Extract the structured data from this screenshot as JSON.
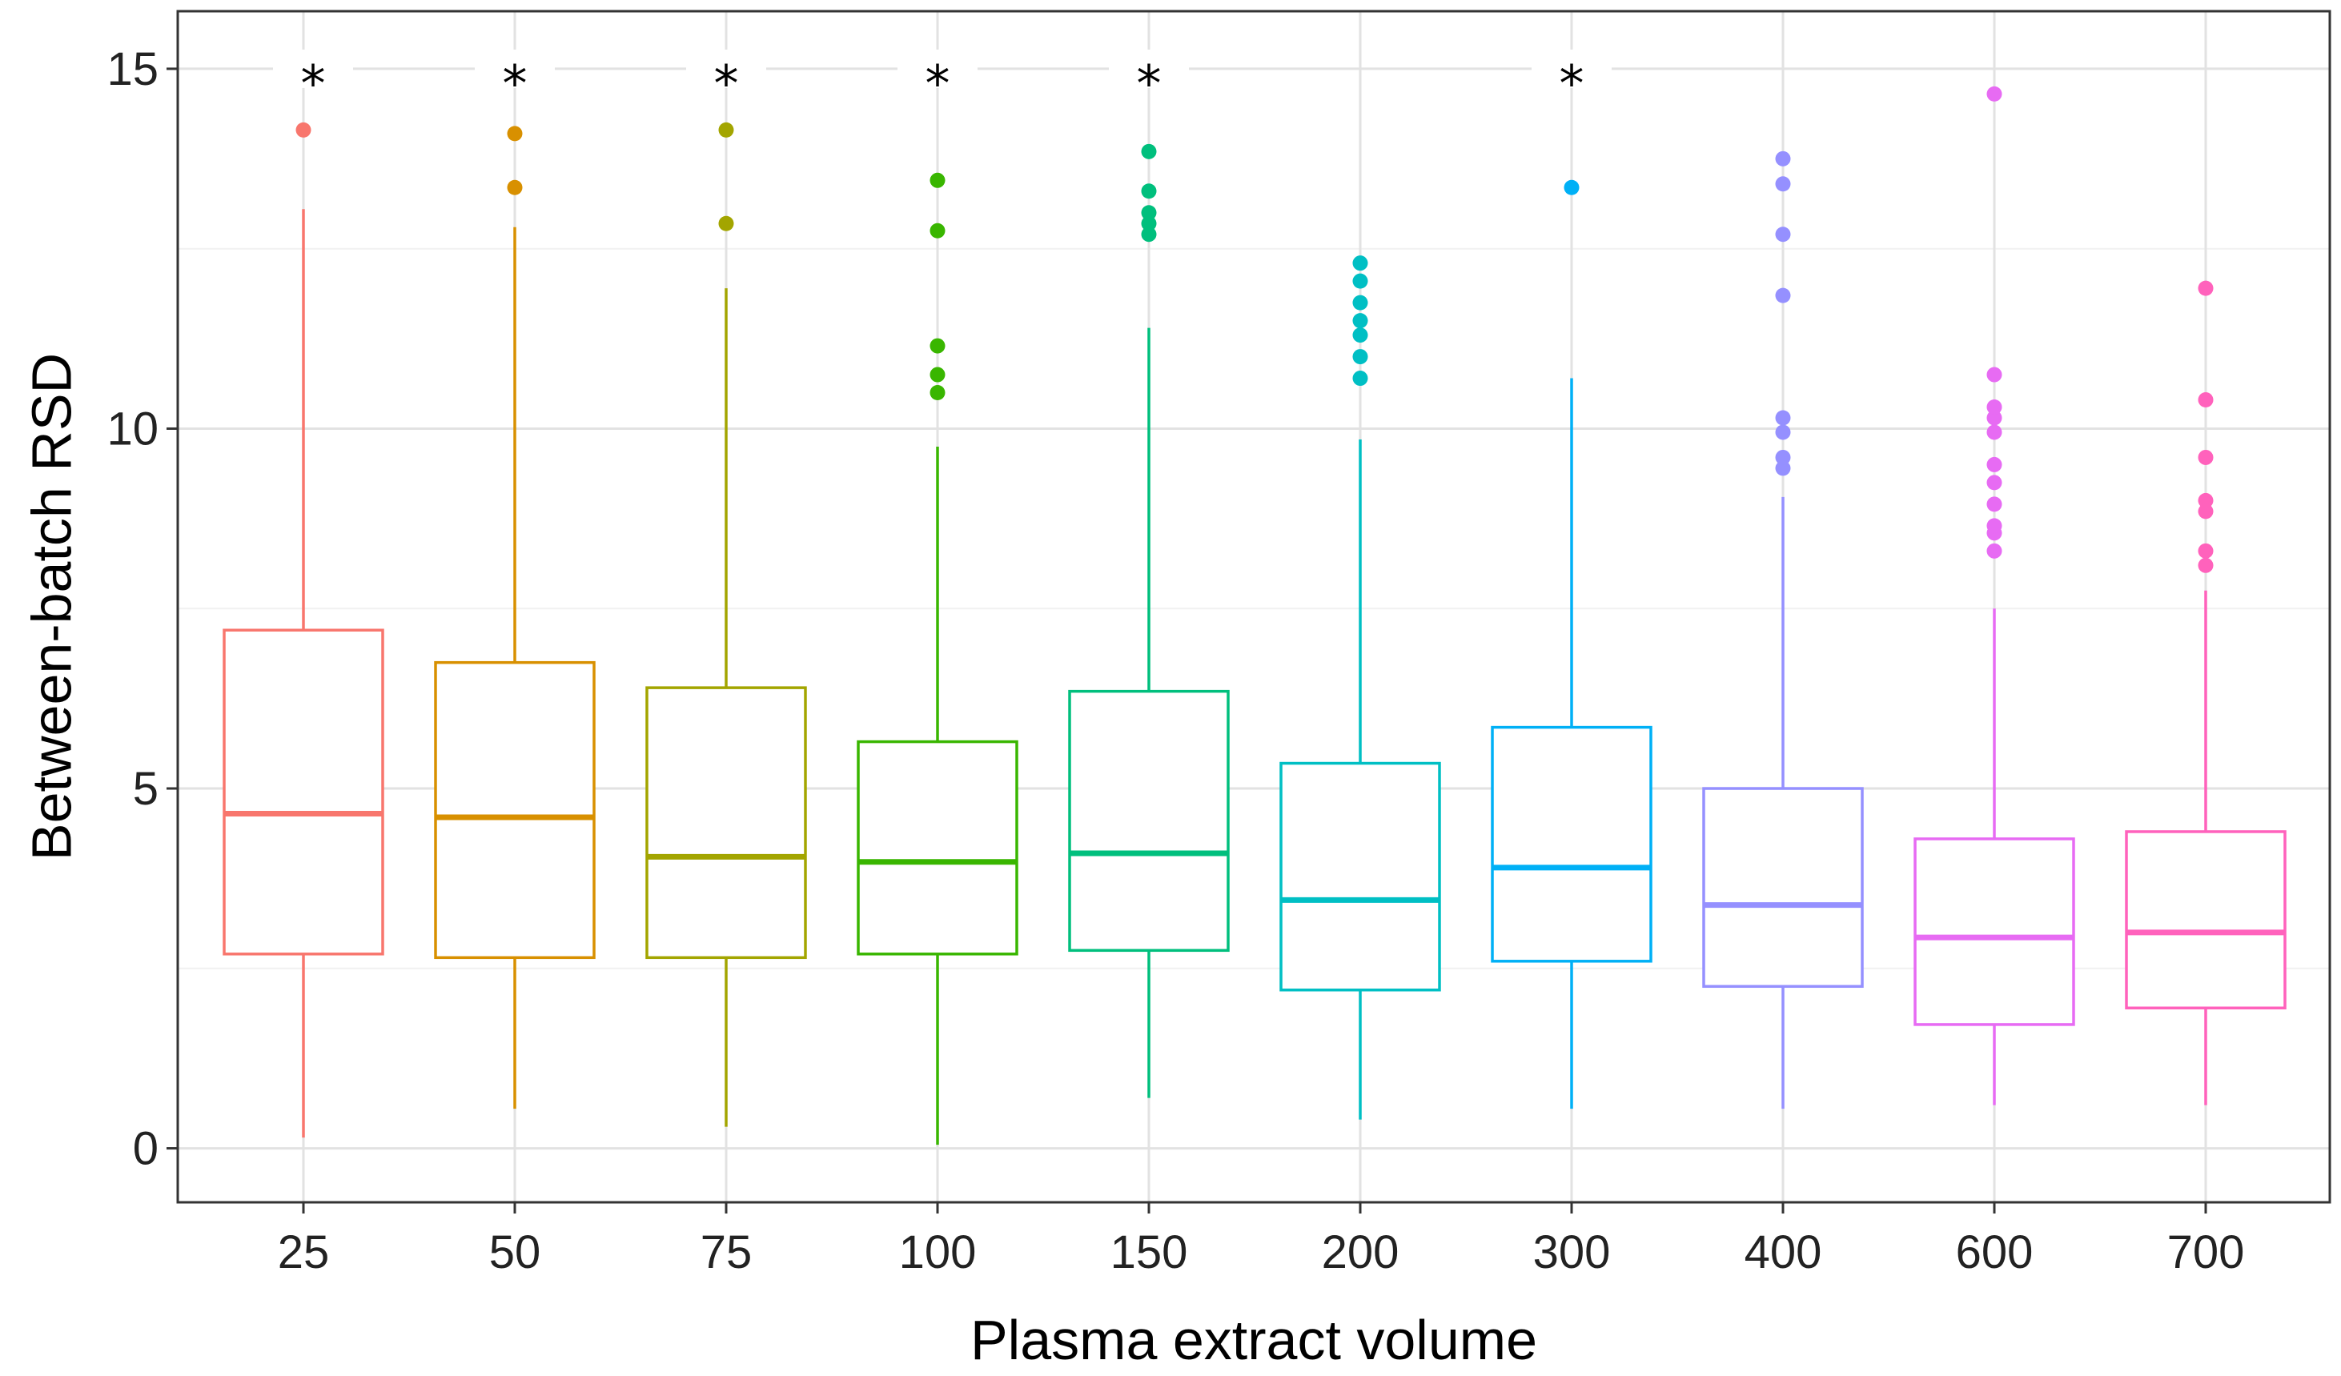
{
  "chart_data": {
    "type": "box",
    "title": "",
    "xlabel": "Plasma extract volume",
    "ylabel": "Between-batch RSD",
    "ylim": [
      -0.75,
      15.8
    ],
    "yticks": [
      0,
      5,
      10,
      15
    ],
    "ytick_labels": [
      "0",
      "5",
      "10",
      "15"
    ],
    "grid": true,
    "significance_marker": "*",
    "categories": [
      "25",
      "50",
      "75",
      "100",
      "150",
      "200",
      "300",
      "400",
      "600",
      "700"
    ],
    "colors": [
      "#F8766D",
      "#D89000",
      "#A3A500",
      "#39B600",
      "#00BF7D",
      "#00BFC4",
      "#00B0F6",
      "#9590FF",
      "#E76BF3",
      "#FF62BC"
    ],
    "boxes": [
      {
        "label": "25",
        "min": 0.15,
        "q1": 2.7,
        "median": 4.65,
        "q3": 7.2,
        "max": 13.05,
        "outliers": [
          14.15
        ],
        "significant": true
      },
      {
        "label": "50",
        "min": 0.55,
        "q1": 2.65,
        "median": 4.6,
        "q3": 6.75,
        "max": 12.8,
        "outliers": [
          13.35,
          14.1
        ],
        "significant": true
      },
      {
        "label": "75",
        "min": 0.3,
        "q1": 2.65,
        "median": 4.05,
        "q3": 6.4,
        "max": 11.95,
        "outliers": [
          12.85,
          14.15
        ],
        "significant": true
      },
      {
        "label": "100",
        "min": 0.05,
        "q1": 2.7,
        "median": 3.98,
        "q3": 5.65,
        "max": 9.75,
        "outliers": [
          10.5,
          10.75,
          11.15,
          12.75,
          13.45
        ],
        "significant": true
      },
      {
        "label": "150",
        "min": 0.7,
        "q1": 2.75,
        "median": 4.1,
        "q3": 6.35,
        "max": 11.4,
        "outliers": [
          12.7,
          12.85,
          13.0,
          13.3,
          13.85
        ],
        "significant": true
      },
      {
        "label": "200",
        "min": 0.4,
        "q1": 2.2,
        "median": 3.45,
        "q3": 5.35,
        "max": 9.85,
        "outliers": [
          10.7,
          11.0,
          11.3,
          11.5,
          11.75,
          12.05,
          12.3
        ],
        "significant": false
      },
      {
        "label": "300",
        "min": 0.55,
        "q1": 2.6,
        "median": 3.9,
        "q3": 5.85,
        "max": 10.7,
        "outliers": [
          13.35
        ],
        "significant": true
      },
      {
        "label": "400",
        "min": 0.55,
        "q1": 2.25,
        "median": 3.38,
        "q3": 5.0,
        "max": 9.05,
        "outliers": [
          9.45,
          9.6,
          9.95,
          10.15,
          11.85,
          12.7,
          13.4,
          13.75
        ],
        "significant": false
      },
      {
        "label": "600",
        "min": 0.6,
        "q1": 1.72,
        "median": 2.93,
        "q3": 4.3,
        "max": 7.5,
        "outliers": [
          8.3,
          8.55,
          8.65,
          8.95,
          9.25,
          9.5,
          9.95,
          10.15,
          10.3,
          10.75,
          14.65
        ],
        "significant": false
      },
      {
        "label": "700",
        "min": 0.6,
        "q1": 1.95,
        "median": 3.0,
        "q3": 4.4,
        "max": 7.75,
        "outliers": [
          8.1,
          8.3,
          8.85,
          9.0,
          9.6,
          10.4,
          11.95
        ],
        "significant": false
      }
    ]
  }
}
